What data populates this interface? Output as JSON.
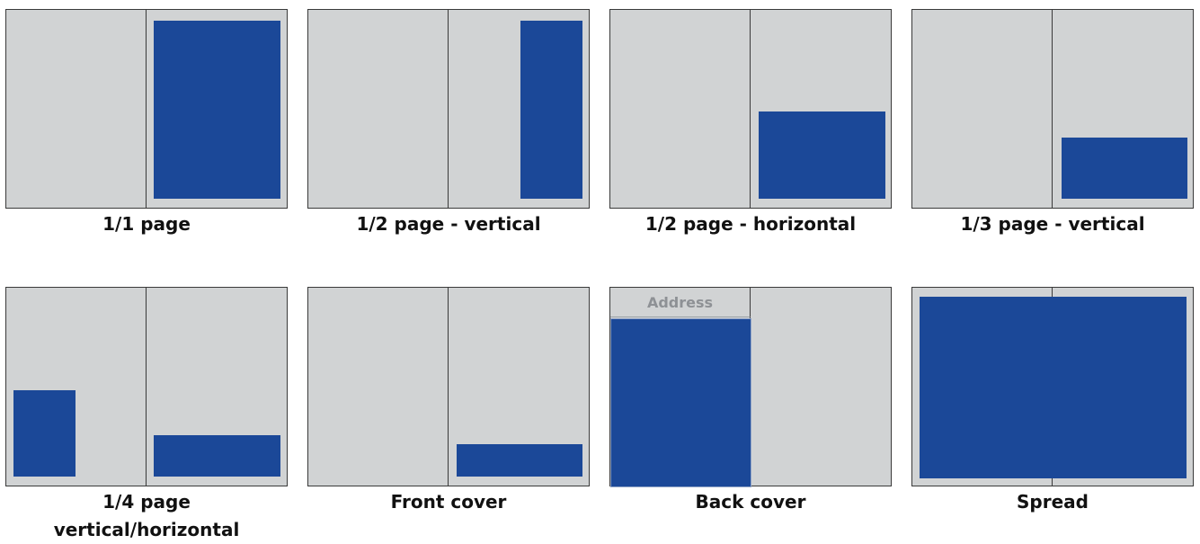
{
  "colors": {
    "page": "#d1d3d4",
    "ad": "#1b4898",
    "line": "#3a3a3a"
  },
  "formats": [
    {
      "id": "full",
      "caption": "1/1 page"
    },
    {
      "id": "half-vertical",
      "caption": "1/2 page - vertical"
    },
    {
      "id": "half-horizontal",
      "caption": "1/2 page - horizontal"
    },
    {
      "id": "third-vertical",
      "caption": "1/3 page - vertical"
    },
    {
      "id": "quarter",
      "caption_line1": "1/4 page",
      "caption_line2": "vertical/horizontal"
    },
    {
      "id": "front-cover",
      "caption": "Front cover"
    },
    {
      "id": "back-cover",
      "caption": "Back cover",
      "address_label": "Address"
    },
    {
      "id": "spread",
      "caption": "Spread"
    }
  ]
}
